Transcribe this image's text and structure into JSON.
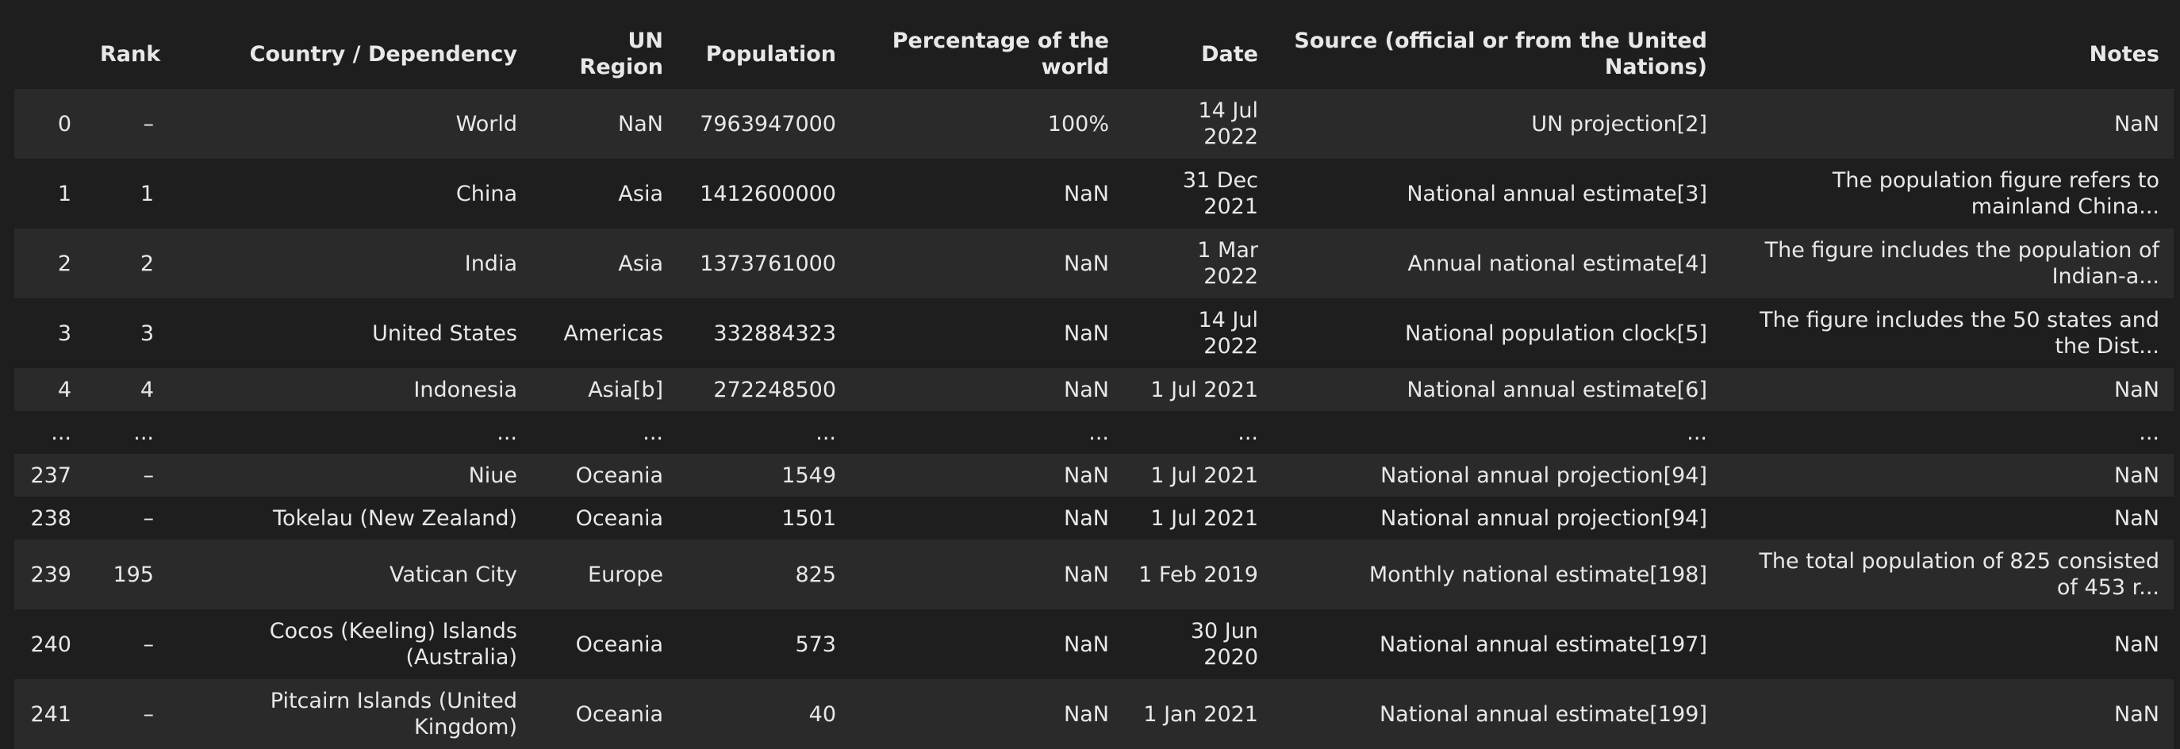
{
  "table": {
    "columns": [
      "",
      "Rank",
      "Country / Dependency",
      "UN Region",
      "Population",
      "Percentage of the world",
      "Date",
      "Source (official or from the United Nations)",
      "Notes"
    ],
    "rows": [
      {
        "index": "0",
        "rank": "–",
        "country": "World",
        "region": "NaN",
        "population": "7963947000",
        "percentage": "100%",
        "date": "14 Jul 2022",
        "source": "UN projection[2]",
        "notes": "NaN"
      },
      {
        "index": "1",
        "rank": "1",
        "country": "China",
        "region": "Asia",
        "population": "1412600000",
        "percentage": "NaN",
        "date": "31 Dec 2021",
        "source": "National annual estimate[3]",
        "notes": "The population figure refers to mainland China..."
      },
      {
        "index": "2",
        "rank": "2",
        "country": "India",
        "region": "Asia",
        "population": "1373761000",
        "percentage": "NaN",
        "date": "1 Mar 2022",
        "source": "Annual national estimate[4]",
        "notes": "The figure includes the population of Indian-a..."
      },
      {
        "index": "3",
        "rank": "3",
        "country": "United States",
        "region": "Americas",
        "population": "332884323",
        "percentage": "NaN",
        "date": "14 Jul 2022",
        "source": "National population clock[5]",
        "notes": "The figure includes the 50 states and the Dist..."
      },
      {
        "index": "4",
        "rank": "4",
        "country": "Indonesia",
        "region": "Asia[b]",
        "population": "272248500",
        "percentage": "NaN",
        "date": "1 Jul 2021",
        "source": "National annual estimate[6]",
        "notes": "NaN"
      },
      {
        "index": "...",
        "rank": "...",
        "country": "...",
        "region": "...",
        "population": "...",
        "percentage": "...",
        "date": "...",
        "source": "...",
        "notes": "..."
      },
      {
        "index": "237",
        "rank": "–",
        "country": "Niue",
        "region": "Oceania",
        "population": "1549",
        "percentage": "NaN",
        "date": "1 Jul 2021",
        "source": "National annual projection[94]",
        "notes": "NaN"
      },
      {
        "index": "238",
        "rank": "–",
        "country": "Tokelau (New Zealand)",
        "region": "Oceania",
        "population": "1501",
        "percentage": "NaN",
        "date": "1 Jul 2021",
        "source": "National annual projection[94]",
        "notes": "NaN"
      },
      {
        "index": "239",
        "rank": "195",
        "country": "Vatican City",
        "region": "Europe",
        "population": "825",
        "percentage": "NaN",
        "date": "1 Feb 2019",
        "source": "Monthly national estimate[198]",
        "notes": "The total population of 825 consisted of 453 r..."
      },
      {
        "index": "240",
        "rank": "–",
        "country": "Cocos (Keeling) Islands (Australia)",
        "region": "Oceania",
        "population": "573",
        "percentage": "NaN",
        "date": "30 Jun 2020",
        "source": "National annual estimate[197]",
        "notes": "NaN"
      },
      {
        "index": "241",
        "rank": "–",
        "country": "Pitcairn Islands (United Kingdom)",
        "region": "Oceania",
        "population": "40",
        "percentage": "NaN",
        "date": "1 Jan 2021",
        "source": "National annual estimate[199]",
        "notes": "NaN"
      }
    ]
  }
}
